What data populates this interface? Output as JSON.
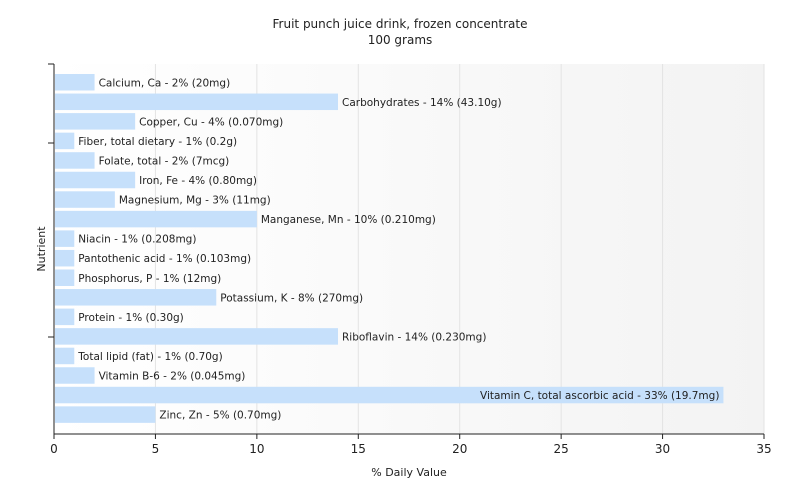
{
  "chart_data": {
    "type": "bar",
    "orientation": "horizontal",
    "title": "Fruit punch juice drink, frozen concentrate",
    "subtitle": "100 grams",
    "xlabel": "% Daily Value",
    "ylabel": "Nutrient",
    "xlim": [
      0,
      35
    ],
    "xticks": [
      0,
      5,
      10,
      15,
      20,
      25,
      30,
      35
    ],
    "grid": true,
    "bar_color": "#c6e0fb",
    "categories": [
      "Calcium, Ca",
      "Carbohydrates",
      "Copper, Cu",
      "Fiber, total dietary",
      "Folate, total",
      "Iron, Fe",
      "Magnesium, Mg",
      "Manganese, Mn",
      "Niacin",
      "Pantothenic acid",
      "Phosphorus, P",
      "Potassium, K",
      "Protein",
      "Riboflavin",
      "Total lipid (fat)",
      "Vitamin B-6",
      "Vitamin C, total ascorbic acid",
      "Zinc, Zn"
    ],
    "values": [
      2,
      14,
      4,
      1,
      2,
      4,
      3,
      10,
      1,
      1,
      1,
      8,
      1,
      14,
      1,
      2,
      33,
      5
    ],
    "labels": [
      "Calcium, Ca - 2% (20mg)",
      "Carbohydrates - 14% (43.10g)",
      "Copper, Cu - 4% (0.070mg)",
      "Fiber, total dietary - 1% (0.2g)",
      "Folate, total - 2% (7mcg)",
      "Iron, Fe - 4% (0.80mg)",
      "Magnesium, Mg - 3% (11mg)",
      "Manganese, Mn - 10% (0.210mg)",
      "Niacin - 1% (0.208mg)",
      "Pantothenic acid - 1% (0.103mg)",
      "Phosphorus, P - 1% (12mg)",
      "Potassium, K - 8% (270mg)",
      "Protein - 1% (0.30g)",
      "Riboflavin - 14% (0.230mg)",
      "Total lipid (fat) - 1% (0.70g)",
      "Vitamin B-6 - 2% (0.045mg)",
      "Vitamin C, total ascorbic acid - 33% (19.7mg)",
      "Zinc, Zn - 5% (0.70mg)"
    ]
  }
}
